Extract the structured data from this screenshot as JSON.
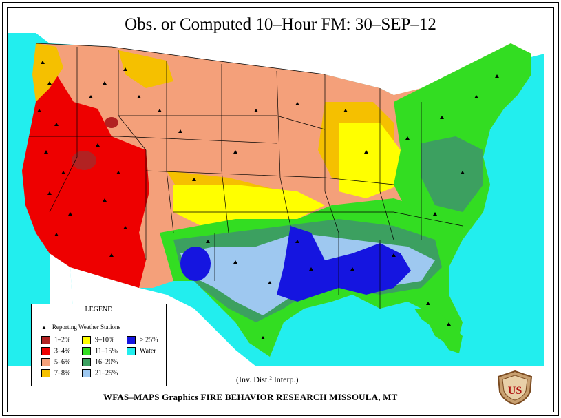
{
  "title": "Obs. or Computed 10–Hour FM:   30–SEP–12",
  "legend": {
    "heading": "LEGEND",
    "stations_label": "Reporting Weather Stations",
    "items": [
      {
        "label": "1–2%",
        "color": "#b22222"
      },
      {
        "label": "3–4%",
        "color": "#ee0000"
      },
      {
        "label": "5–6%",
        "color": "#f4a07a"
      },
      {
        "label": "7–8%",
        "color": "#f5c000"
      },
      {
        "label": "9–10%",
        "color": "#ffff00"
      },
      {
        "label": "11–15%",
        "color": "#33dd22"
      },
      {
        "label": "16–20%",
        "color": "#3ca060"
      },
      {
        "label": "21–25%",
        "color": "#9ec8f0"
      },
      {
        "label": "> 25%",
        "color": "#1515e0"
      },
      {
        "label": "Water",
        "color": "#22eeee"
      }
    ]
  },
  "interp_note": "(Inv. Dist.² Interp.)",
  "footer": "WFAS–MAPS Graphics    FIRE BEHAVIOR RESEARCH    MISSOULA, MT",
  "logo_text": "US"
}
